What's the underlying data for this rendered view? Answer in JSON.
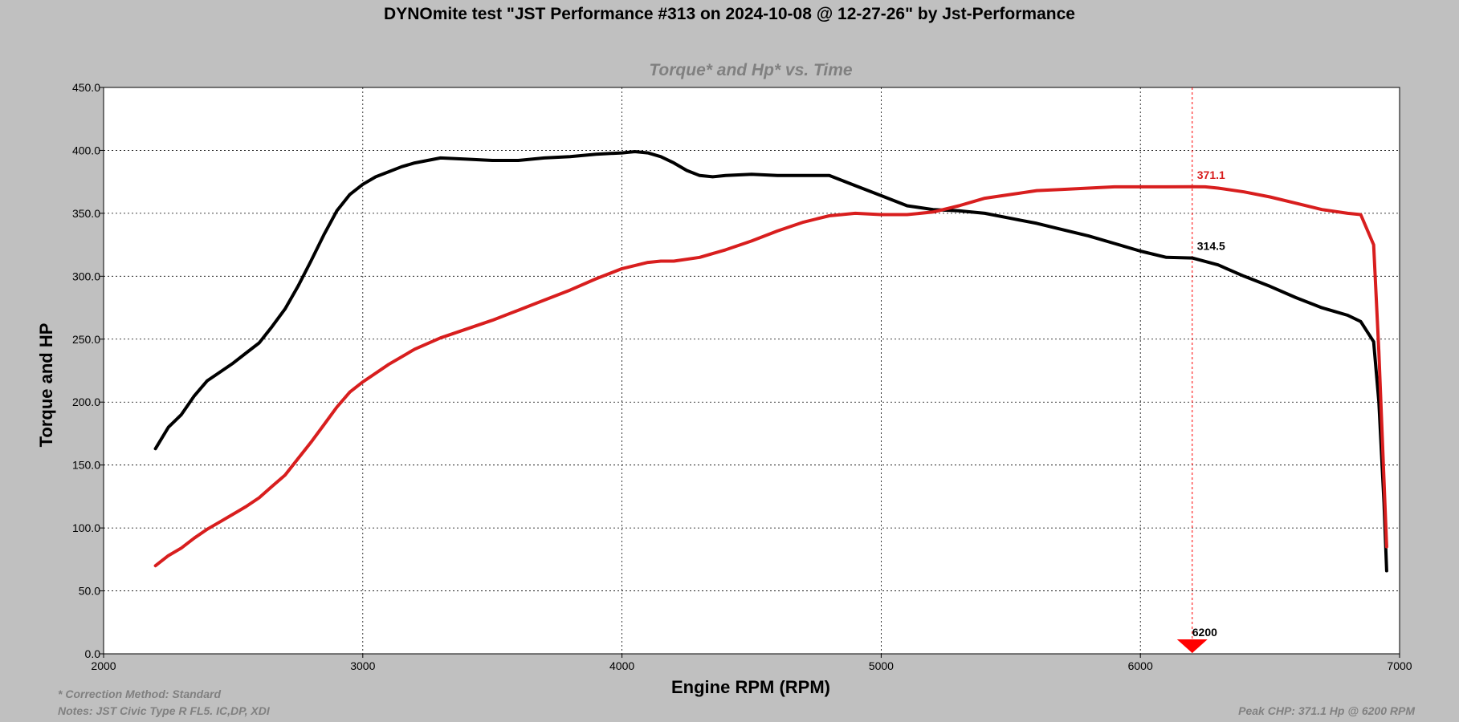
{
  "header": {
    "title": "DYNOmite test \"JST Performance #313 on 2024-10-08 @ 12-27-26\" by Jst-Performance",
    "subtitle": "Torque* and Hp* vs. Time"
  },
  "footer": {
    "correction": "* Correction Method: Standard",
    "notes": "Notes: JST Civic Type R FL5. IC,DP, XDI",
    "peak": "Peak CHP: 371.1 Hp @ 6200 RPM"
  },
  "colors": {
    "background": "#c0c0c0",
    "plot_bg": "#ffffff",
    "hp_line": "#d81e1e",
    "torque_line": "#000000",
    "marker": "#ff0000",
    "grid": "#000000"
  },
  "chart_data": {
    "type": "line",
    "xlabel": "Engine RPM (RPM)",
    "ylabel": "Torque and HP",
    "xlim": [
      2000,
      7000
    ],
    "ylim": [
      0,
      450
    ],
    "x_ticks": [
      2000,
      3000,
      4000,
      5000,
      6000,
      7000
    ],
    "y_ticks": [
      "0.0",
      "50.0",
      "100.0",
      "150.0",
      "200.0",
      "250.0",
      "300.0",
      "350.0",
      "400.0",
      "450.0"
    ],
    "grid": true,
    "marker": {
      "rpm": 6200,
      "label": "6200",
      "hp_value_label": "371.1",
      "torque_value_label": "314.5"
    },
    "series": [
      {
        "key": "torque",
        "color": "#000000",
        "x": [
          2200,
          2250,
          2300,
          2350,
          2400,
          2450,
          2500,
          2550,
          2600,
          2650,
          2700,
          2750,
          2800,
          2850,
          2900,
          2950,
          3000,
          3050,
          3100,
          3150,
          3200,
          3250,
          3300,
          3400,
          3500,
          3600,
          3700,
          3800,
          3900,
          4000,
          4050,
          4100,
          4150,
          4200,
          4250,
          4300,
          4350,
          4400,
          4500,
          4600,
          4700,
          4800,
          4900,
          5000,
          5100,
          5200,
          5300,
          5400,
          5500,
          5600,
          5700,
          5800,
          5900,
          6000,
          6100,
          6200,
          6300,
          6400,
          6500,
          6600,
          6700,
          6800,
          6850,
          6900,
          6920,
          6940,
          6950
        ],
        "values": [
          163,
          180,
          190,
          205,
          217,
          224,
          231,
          239,
          247,
          260,
          274,
          292,
          312,
          333,
          352,
          365,
          373,
          379,
          383,
          387,
          390,
          392,
          394,
          393,
          392,
          392,
          394,
          395,
          397,
          398,
          399,
          398,
          395,
          390,
          384,
          380,
          379,
          380,
          381,
          380,
          380,
          380,
          372,
          364,
          356,
          353,
          352,
          350,
          346,
          342,
          337,
          332,
          326,
          320,
          315,
          314.5,
          309,
          300,
          292,
          283,
          275,
          269,
          264,
          248,
          200,
          120,
          66
        ]
      },
      {
        "key": "hp",
        "color": "#d81e1e",
        "x": [
          2200,
          2250,
          2300,
          2350,
          2400,
          2450,
          2500,
          2550,
          2600,
          2650,
          2700,
          2750,
          2800,
          2850,
          2900,
          2950,
          3000,
          3100,
          3200,
          3300,
          3400,
          3500,
          3600,
          3700,
          3800,
          3900,
          4000,
          4100,
          4150,
          4200,
          4300,
          4400,
          4500,
          4600,
          4700,
          4800,
          4900,
          5000,
          5100,
          5200,
          5300,
          5400,
          5500,
          5600,
          5700,
          5800,
          5900,
          6000,
          6100,
          6200,
          6250,
          6300,
          6400,
          6500,
          6600,
          6700,
          6800,
          6850,
          6900,
          6920,
          6950
        ],
        "values": [
          70,
          78,
          84,
          92,
          99,
          105,
          111,
          117,
          124,
          133,
          142,
          155,
          168,
          182,
          196,
          208,
          216,
          230,
          242,
          251,
          258,
          265,
          273,
          281,
          289,
          298,
          306,
          311,
          312,
          312,
          315,
          321,
          328,
          336,
          343,
          348,
          350,
          349,
          349,
          351,
          356,
          362,
          365,
          368,
          369,
          370,
          371,
          371,
          371,
          371.1,
          371,
          370,
          367,
          363,
          358,
          353,
          350,
          349,
          325,
          240,
          85
        ]
      }
    ]
  }
}
